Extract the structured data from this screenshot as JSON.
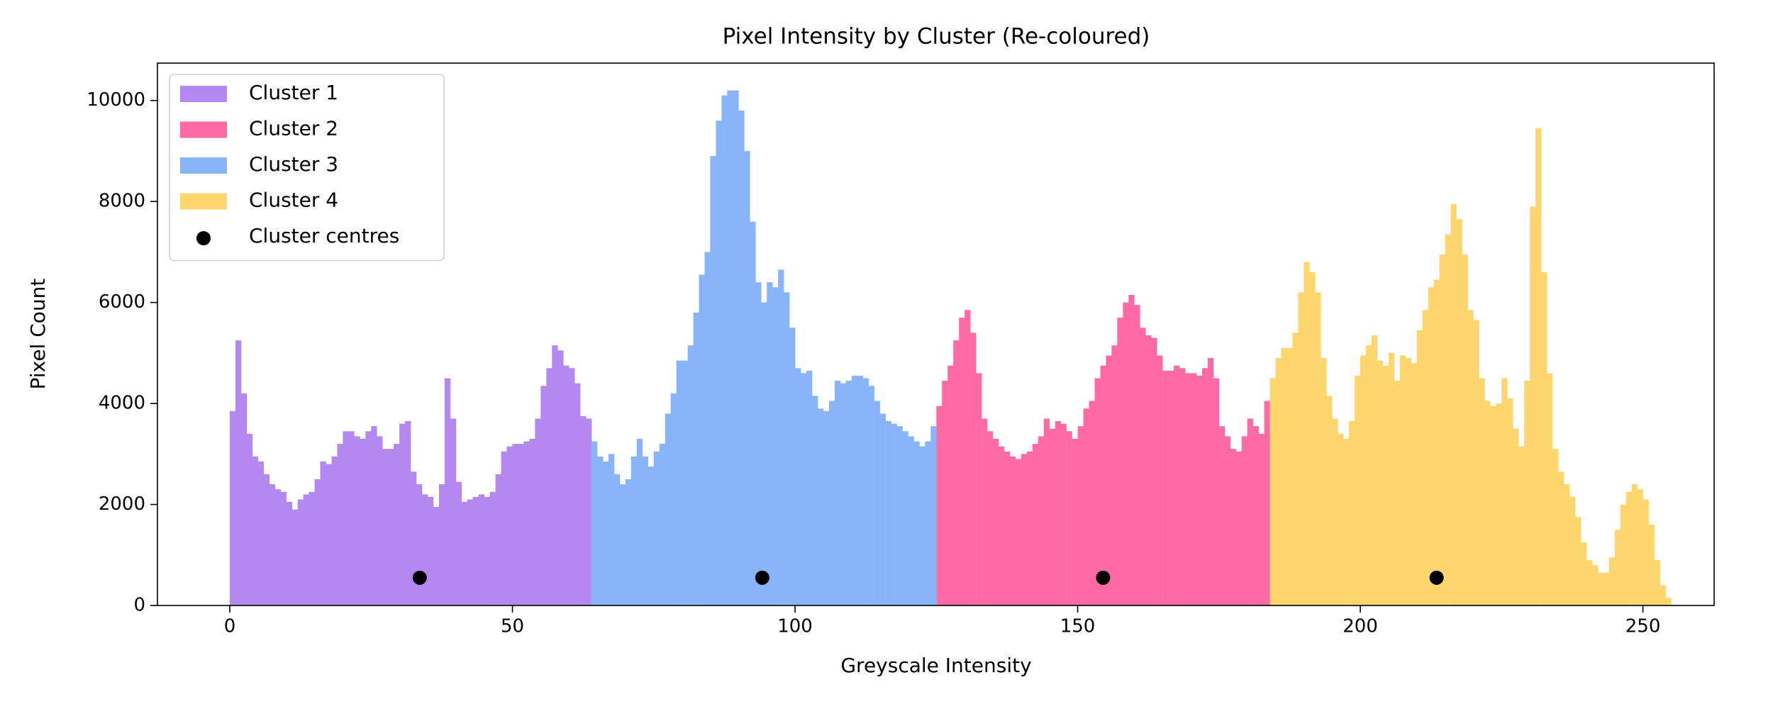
{
  "chart_data": {
    "type": "histogram",
    "title": "Pixel Intensity by Cluster (Re-coloured)",
    "xlabel": "Greyscale Intensity",
    "ylabel": "Pixel Count",
    "xlim": [
      -12.8,
      262.6
    ],
    "ylim": [
      0,
      10740
    ],
    "xticks": [
      0,
      50,
      100,
      150,
      200,
      250
    ],
    "yticks": [
      0,
      2000,
      4000,
      6000,
      8000,
      10000
    ],
    "legend": "upper left",
    "series": [
      {
        "name": "Cluster 1",
        "color": "#b388f0",
        "bins": [
          0,
          1,
          2,
          3,
          4,
          5,
          6,
          7,
          8,
          9,
          10,
          11,
          12,
          13,
          14,
          15,
          16,
          17,
          18,
          19,
          20,
          21,
          22,
          23,
          24,
          25,
          26,
          27,
          28,
          29,
          30,
          31,
          32,
          33,
          34,
          35,
          36,
          37,
          38,
          39,
          40,
          41,
          42,
          43,
          44,
          45,
          46,
          47,
          48,
          49,
          50,
          51,
          52,
          53,
          54,
          55,
          56,
          57,
          58,
          59,
          60,
          61,
          62,
          63,
          64
        ],
        "values": [
          3850,
          5250,
          4200,
          3400,
          2950,
          2850,
          2600,
          2400,
          2300,
          2250,
          2050,
          1900,
          2100,
          2200,
          2250,
          2500,
          2850,
          2800,
          2950,
          3200,
          3450,
          3450,
          3350,
          3300,
          3450,
          3550,
          3350,
          3100,
          3100,
          3200,
          3600,
          3650,
          2650,
          2400,
          2200,
          2150,
          1950,
          2400,
          4500,
          3700,
          2450,
          2050,
          2100,
          2150,
          2200,
          2150,
          2250,
          2600,
          3050,
          3150,
          3200,
          3200,
          3250,
          3300,
          3700,
          4350,
          4700,
          5150,
          5050,
          4750,
          4700,
          4400,
          3750,
          3700
        ]
      },
      {
        "name": "Cluster 2",
        "color": "#ff69a4",
        "bins": [
          125,
          126,
          127,
          128,
          129,
          130,
          131,
          132,
          133,
          134,
          135,
          136,
          137,
          138,
          139,
          140,
          141,
          142,
          143,
          144,
          145,
          146,
          147,
          148,
          149,
          150,
          151,
          152,
          153,
          154,
          155,
          156,
          157,
          158,
          159,
          160,
          161,
          162,
          163,
          164,
          165,
          166,
          167,
          168,
          169,
          170,
          171,
          172,
          173,
          174,
          175,
          176,
          177,
          178,
          179,
          180,
          181,
          182,
          183,
          184
        ],
        "values": [
          3950,
          4450,
          4750,
          5250,
          5700,
          5850,
          5400,
          4600,
          3700,
          3450,
          3300,
          3150,
          3050,
          2950,
          2900,
          3000,
          3050,
          3200,
          3350,
          3700,
          3500,
          3650,
          3600,
          3450,
          3300,
          3550,
          3900,
          4050,
          4500,
          4750,
          4950,
          5150,
          5700,
          6000,
          6150,
          5950,
          5500,
          5350,
          5300,
          4950,
          4650,
          4650,
          4750,
          4700,
          4600,
          4600,
          4550,
          4700,
          4900,
          4500,
          3550,
          3350,
          3100,
          3050,
          3350,
          3700,
          3550,
          3400,
          4050
        ]
      },
      {
        "name": "Cluster 3",
        "color": "#8ab4fa",
        "bins": [
          64,
          65,
          66,
          67,
          68,
          69,
          70,
          71,
          72,
          73,
          74,
          75,
          76,
          77,
          78,
          79,
          80,
          81,
          82,
          83,
          84,
          85,
          86,
          87,
          88,
          89,
          90,
          91,
          92,
          93,
          94,
          95,
          96,
          97,
          98,
          99,
          100,
          101,
          102,
          103,
          104,
          105,
          106,
          107,
          108,
          109,
          110,
          111,
          112,
          113,
          114,
          115,
          116,
          117,
          118,
          119,
          120,
          121,
          122,
          123,
          124,
          125
        ],
        "values": [
          3250,
          2950,
          2850,
          3000,
          2600,
          2400,
          2500,
          2950,
          3300,
          2950,
          2750,
          3050,
          3200,
          3800,
          4200,
          4850,
          4850,
          5150,
          5800,
          6550,
          7000,
          8900,
          9600,
          10100,
          10200,
          10200,
          9800,
          9000,
          7600,
          6400,
          6000,
          6400,
          6300,
          6650,
          6200,
          5500,
          4700,
          4600,
          4650,
          4150,
          3900,
          3850,
          4050,
          4450,
          4400,
          4450,
          4550,
          4550,
          4500,
          4350,
          4050,
          3800,
          3650,
          3600,
          3550,
          3450,
          3350,
          3250,
          3150,
          3250,
          3550
        ]
      },
      {
        "name": "Cluster 4",
        "color": "#fdd66e",
        "bins": [
          184,
          185,
          186,
          187,
          188,
          189,
          190,
          191,
          192,
          193,
          194,
          195,
          196,
          197,
          198,
          199,
          200,
          201,
          202,
          203,
          204,
          205,
          206,
          207,
          208,
          209,
          210,
          211,
          212,
          213,
          214,
          215,
          216,
          217,
          218,
          219,
          220,
          221,
          222,
          223,
          224,
          225,
          226,
          227,
          228,
          229,
          230,
          231,
          232,
          233,
          234,
          235,
          236,
          237,
          238,
          239,
          240,
          241,
          242,
          243,
          244,
          245,
          246,
          247,
          248,
          249,
          250,
          251,
          252,
          253,
          254,
          255
        ],
        "values": [
          4500,
          4900,
          5100,
          5100,
          5400,
          6200,
          6800,
          6600,
          6200,
          4900,
          4150,
          3700,
          3400,
          3300,
          3650,
          4550,
          4950,
          5150,
          5350,
          4850,
          4750,
          5000,
          4450,
          4950,
          4900,
          4800,
          5450,
          5850,
          6300,
          6450,
          6950,
          7350,
          7950,
          7650,
          6950,
          5850,
          5650,
          4500,
          4050,
          3950,
          4000,
          4500,
          4100,
          3500,
          3150,
          4450,
          7900,
          9450,
          6600,
          4600,
          3100,
          2650,
          2400,
          2150,
          1750,
          1250,
          900,
          800,
          650,
          650,
          950,
          1500,
          2000,
          2250,
          2400,
          2300,
          2100,
          1600,
          900,
          400,
          150
        ]
      }
    ],
    "centres": {
      "type": "scatter",
      "name": "Cluster centres",
      "color": "#000000",
      "x": [
        33.6,
        94.2,
        154.5,
        213.5
      ],
      "y": [
        550,
        550,
        550,
        550
      ]
    }
  }
}
